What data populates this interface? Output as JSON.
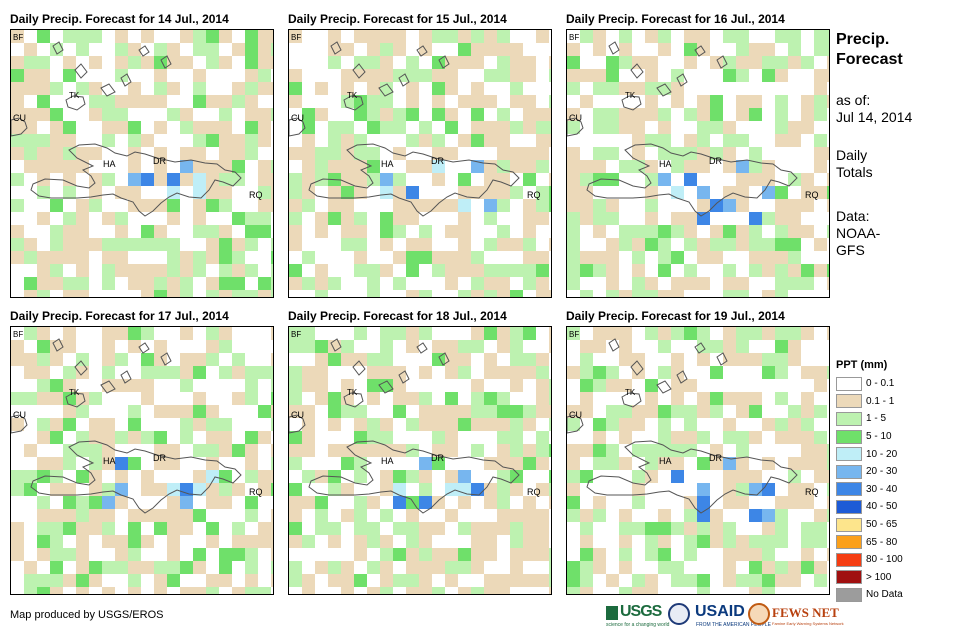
{
  "panels": [
    {
      "title": "Daily Precip. Forecast for 14 Jul., 2014",
      "seed": 1
    },
    {
      "title": "Daily Precip. Forecast for 15 Jul., 2014",
      "seed": 2
    },
    {
      "title": "Daily Precip. Forecast for 16 Jul., 2014",
      "seed": 3
    },
    {
      "title": "Daily Precip. Forecast for 17 Jul., 2014",
      "seed": 4
    },
    {
      "title": "Daily Precip. Forecast for 18 Jul., 2014",
      "seed": 5
    },
    {
      "title": "Daily Precip. Forecast for 19 Jul., 2014",
      "seed": 6
    }
  ],
  "map_labels": {
    "bf": "BF",
    "cu": "CU",
    "tk": "TK",
    "ha": "HA",
    "dr": "DR",
    "rq": "RQ"
  },
  "sidebar": {
    "title_line1": "Precip.",
    "title_line2": "Forecast",
    "asof_label": "as of:",
    "asof_date": "Jul 14, 2014",
    "totals_line1": "Daily",
    "totals_line2": "Totals",
    "data_line1": "Data:",
    "data_line2": "NOAA-",
    "data_line3": "GFS"
  },
  "legend": {
    "title": "PPT (mm)",
    "items": [
      {
        "label": "0 - 0.1",
        "color": "#ffffff"
      },
      {
        "label": "0.1 - 1",
        "color": "#ecd9b9"
      },
      {
        "label": "1 - 5",
        "color": "#bdf2b0"
      },
      {
        "label": "5 - 10",
        "color": "#6fe06a"
      },
      {
        "label": "10 - 20",
        "color": "#bfeef7"
      },
      {
        "label": "20 - 30",
        "color": "#77b6ef"
      },
      {
        "label": "30 - 40",
        "color": "#3d86e6"
      },
      {
        "label": "40 - 50",
        "color": "#1d5bd6"
      },
      {
        "label": "50 - 65",
        "color": "#fde58c"
      },
      {
        "label": "65 - 80",
        "color": "#fba01a"
      },
      {
        "label": "80 - 100",
        "color": "#f53d12"
      },
      {
        "label": "> 100",
        "color": "#a01010"
      },
      {
        "label": "No Data",
        "color": "#9c9c9c"
      }
    ]
  },
  "footer": {
    "credit": "Map produced by USGS/EROS",
    "usgs": "USGS",
    "usgs_tagline": "science for a changing world",
    "usaid": "USAID",
    "usaid_tagline": "FROM THE AMERICAN PEOPLE",
    "fews": "FEWS NET",
    "fews_tagline": "Famine Early Warning Systems Network"
  }
}
